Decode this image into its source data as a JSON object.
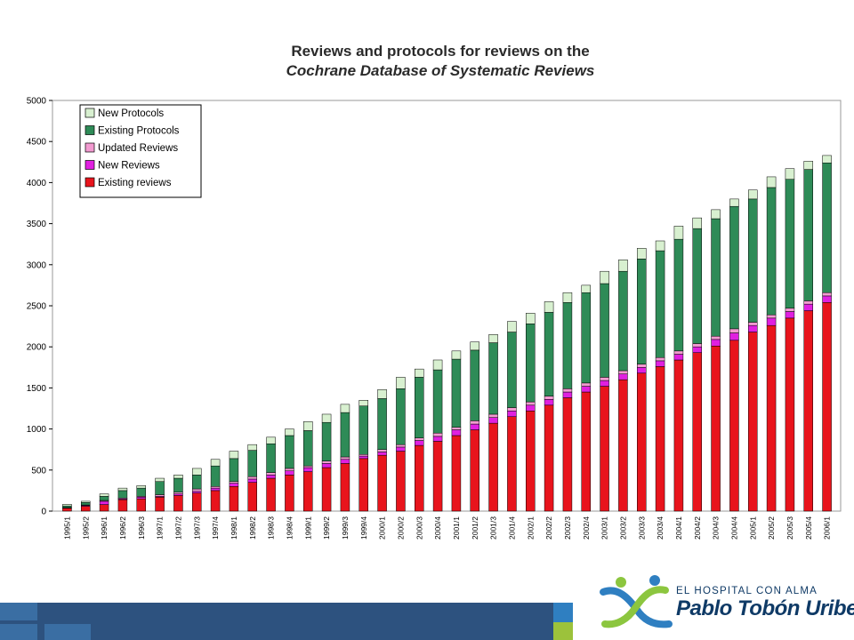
{
  "chart_data": {
    "type": "bar",
    "stacked": true,
    "title_line1": "Reviews and protocols for reviews on the",
    "title_line2": "Cochrane Database of Systematic Reviews",
    "ylim": [
      0,
      5000
    ],
    "yticks": [
      0,
      500,
      1000,
      1500,
      2000,
      2500,
      3000,
      3500,
      4000,
      4500,
      5000
    ],
    "grid": false,
    "legend_position": "top-left",
    "categories": [
      "1995/1",
      "1995/2",
      "1996/1",
      "1996/2",
      "1996/3",
      "1997/1",
      "1997/2",
      "1997/3",
      "1997/4",
      "1998/1",
      "1998/2",
      "1998/3",
      "1998/4",
      "1999/1",
      "1999/2",
      "1999/3",
      "1999/4",
      "2000/1",
      "2000/2",
      "2000/3",
      "2000/4",
      "2001/1",
      "2001/2",
      "2001/3",
      "2001/4",
      "2002/1",
      "2002/2",
      "2002/3",
      "2002/4",
      "2003/1",
      "2003/2",
      "2003/3",
      "2003/4",
      "2004/1",
      "2004/2",
      "2004/3",
      "2004/4",
      "2005/1",
      "2005/2",
      "2005/3",
      "2005/4",
      "2006/1"
    ],
    "series": [
      {
        "name": "Existing reviews",
        "color": "#e8141c",
        "values": [
          35,
          60,
          80,
          140,
          150,
          170,
          190,
          220,
          250,
          300,
          350,
          400,
          440,
          480,
          530,
          580,
          640,
          680,
          730,
          800,
          850,
          920,
          990,
          1070,
          1150,
          1220,
          1290,
          1380,
          1450,
          1520,
          1600,
          1680,
          1760,
          1840,
          1930,
          2010,
          2080,
          2180,
          2260,
          2350,
          2440,
          2540
        ]
      },
      {
        "name": "New Reviews",
        "color": "#e020e0",
        "values": [
          5,
          10,
          40,
          10,
          20,
          10,
          20,
          20,
          30,
          40,
          40,
          40,
          50,
          50,
          50,
          50,
          30,
          40,
          50,
          60,
          60,
          70,
          70,
          70,
          70,
          70,
          70,
          70,
          70,
          70,
          70,
          70,
          70,
          70,
          70,
          80,
          90,
          80,
          90,
          80,
          80,
          80
        ]
      },
      {
        "name": "Updated Reviews",
        "color": "#f29ad0",
        "values": [
          3,
          5,
          10,
          10,
          10,
          20,
          20,
          30,
          20,
          20,
          30,
          30,
          30,
          20,
          30,
          30,
          20,
          30,
          30,
          30,
          40,
          30,
          40,
          40,
          40,
          40,
          40,
          40,
          40,
          40,
          40,
          40,
          40,
          40,
          40,
          40,
          50,
          40,
          40,
          40,
          40,
          40
        ]
      },
      {
        "name": "Existing Protocols",
        "color": "#2e8b57",
        "values": [
          20,
          30,
          50,
          90,
          100,
          160,
          170,
          170,
          250,
          280,
          320,
          350,
          400,
          430,
          470,
          540,
          590,
          620,
          680,
          740,
          770,
          830,
          860,
          870,
          920,
          950,
          1020,
          1050,
          1100,
          1140,
          1210,
          1280,
          1300,
          1360,
          1400,
          1430,
          1490,
          1500,
          1550,
          1570,
          1600,
          1580
        ]
      },
      {
        "name": "New Protocols",
        "color": "#d8f0d0",
        "values": [
          20,
          15,
          30,
          30,
          30,
          40,
          40,
          80,
          80,
          90,
          70,
          80,
          80,
          110,
          100,
          100,
          70,
          110,
          140,
          100,
          120,
          100,
          100,
          100,
          130,
          130,
          130,
          120,
          90,
          150,
          140,
          130,
          120,
          160,
          130,
          110,
          90,
          110,
          130,
          130,
          100,
          90
        ]
      }
    ]
  },
  "footer": {
    "logo_top": "EL HOSPITAL CON ALMA",
    "logo_main": "Pablo Tobón Uribe",
    "brand_navy": "#2d527f",
    "brand_blue": "#2f7fc1",
    "brand_green": "#9cc23b"
  }
}
